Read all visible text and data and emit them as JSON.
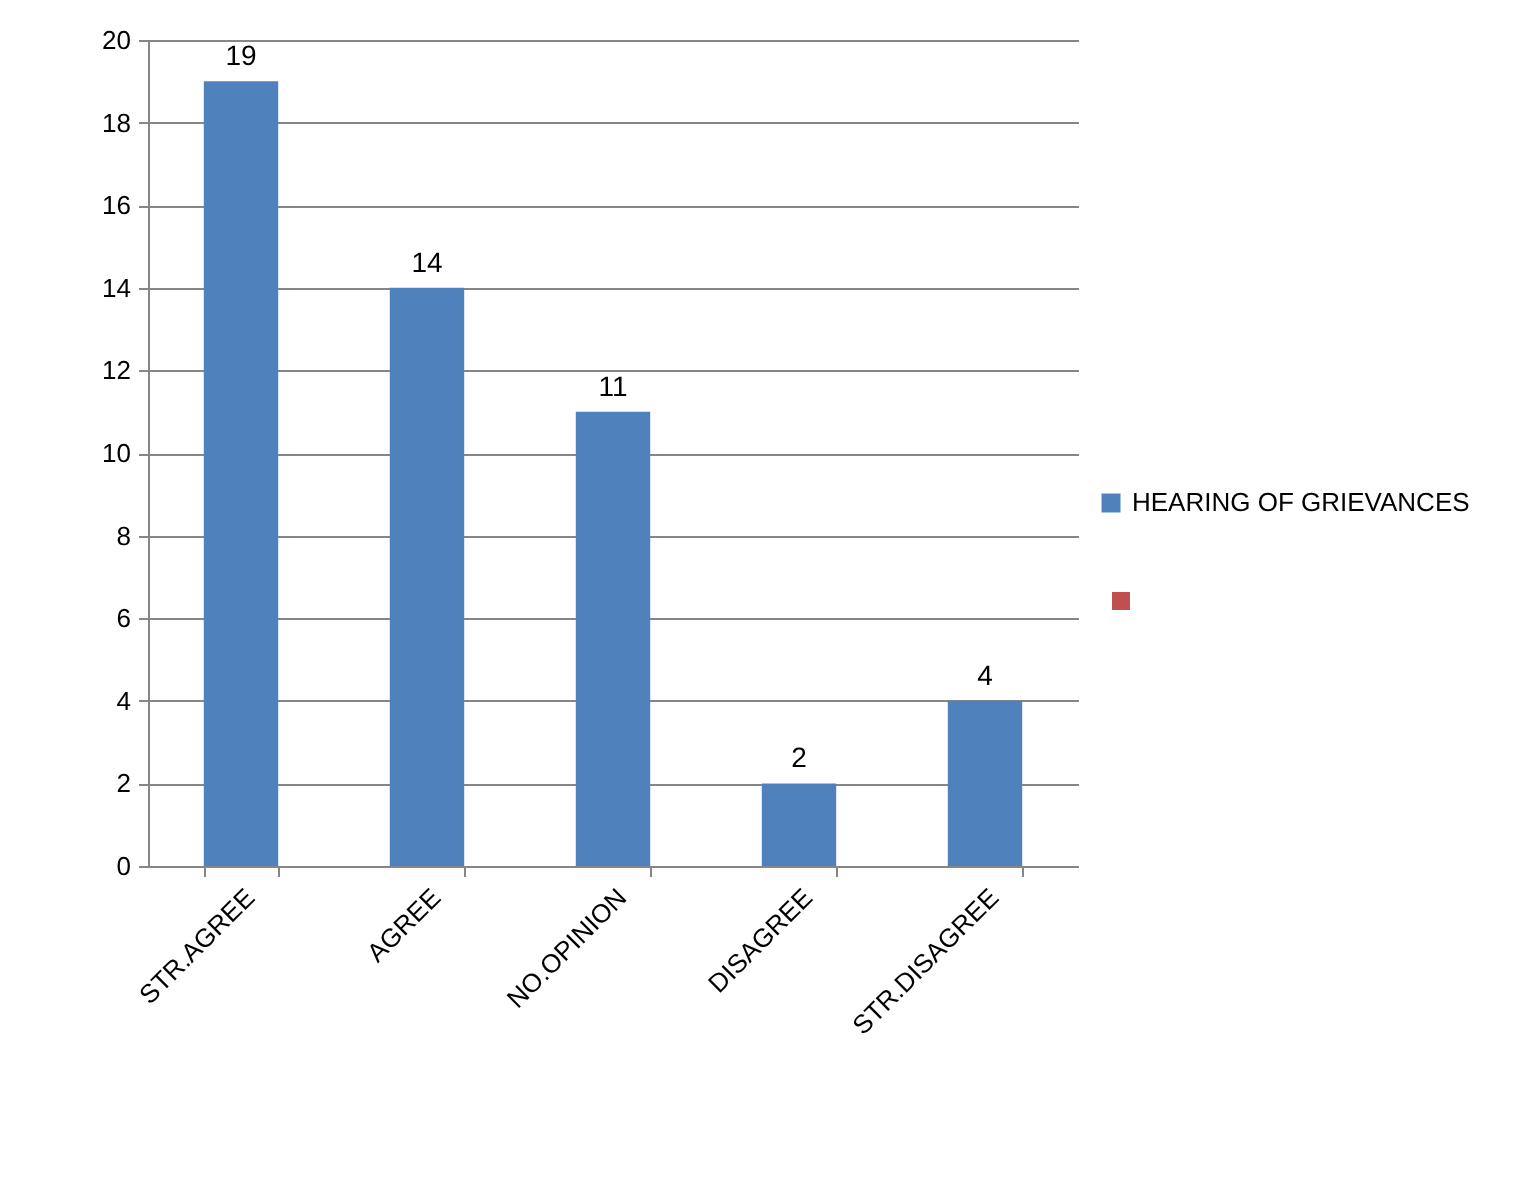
{
  "chart_data": {
    "type": "bar",
    "categories": [
      "STR.AGREE",
      "AGREE",
      "NO.OPINION",
      "DISAGREE",
      "STR.DISAGREE"
    ],
    "series": [
      {
        "name": "HEARING OF GRIEVANCES",
        "color": "#4f81bd",
        "values": [
          19,
          14,
          11,
          2,
          4
        ]
      }
    ],
    "ylim": [
      0,
      20
    ],
    "yticks": [
      0,
      2,
      4,
      6,
      8,
      10,
      12,
      14,
      16,
      18,
      20
    ],
    "grid": "y",
    "legend": "right",
    "data_labels": true
  }
}
